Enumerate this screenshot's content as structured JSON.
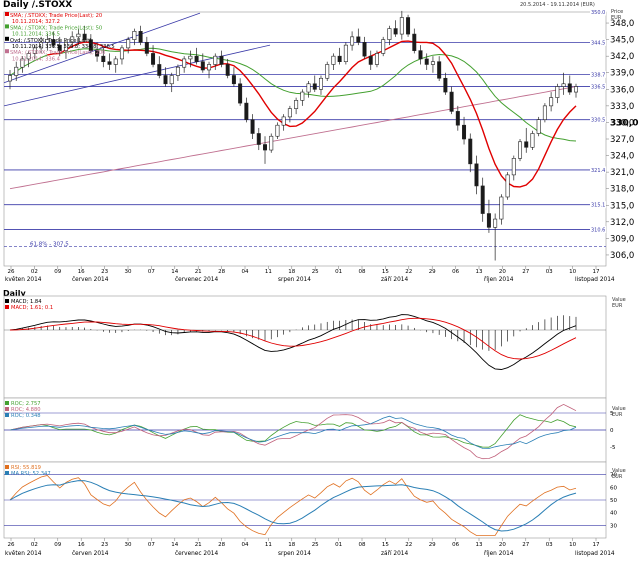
{
  "header": {
    "title": "Daily /.STOXX",
    "date_range": "20.5.2014 - 19.11.2014 (EUR)",
    "price_label": "Price",
    "currency_label": "EUR",
    "value_label": "Value",
    "sub_title": "Daily"
  },
  "chart_data": [
    {
      "type": "line",
      "panel": "price",
      "title": "Daily /.STOXX",
      "legend": [
        {
          "text": "SMA; /.STOXX; Trade Price(Last); 20",
          "color": "#e00000"
        },
        {
          "text": "10.11.2014; 327.2",
          "color": "#e00000"
        },
        {
          "text": "SMA; /.STOXX; Trade Price(Last); 50",
          "color": "#44a030"
        },
        {
          "text": "10.11.2014; 336.5",
          "color": "#44a030"
        },
        {
          "text": "Ovd; /.STOXX; Trade Price(Last)",
          "color": "#000000"
        },
        {
          "text": "10.11.2014; 336.5; 336.8; 334.8; 336.5",
          "color": "#000000"
        },
        {
          "text": "SMA; /.STOXX; Trade Price(Last); 200",
          "color": "#c07090"
        },
        {
          "text": "10.11.2014; 336.4",
          "color": "#c07090"
        }
      ],
      "ylim": [
        304,
        350
      ],
      "y_ticks": [
        "306,0",
        "309,0",
        "312,0",
        "315,0",
        "318,0",
        "321,0",
        "324,0",
        "327,0",
        "330,0",
        "333,0",
        "336,0",
        "339,0",
        "342,0",
        "345,0",
        "348,0"
      ],
      "level_labels": [
        {
          "value": 350.0,
          "text": "350.0"
        },
        {
          "value": 344.5,
          "text": "344.5"
        },
        {
          "value": 338.7,
          "text": "338.7"
        },
        {
          "value": 336.5,
          "text": "336.5"
        },
        {
          "value": 330.5,
          "text": "330.5"
        },
        {
          "value": 321.4,
          "text": "321.4"
        },
        {
          "value": 315.1,
          "text": "315.1"
        },
        {
          "value": 310.6,
          "text": "310.6"
        }
      ],
      "current_price": "330,0",
      "h_lines": [
        344.5,
        338.7,
        336.5,
        330.5,
        321.4,
        315.1,
        310.6
      ],
      "fib_line": {
        "value": 307.5,
        "text": "61,8% - 307,5"
      },
      "x_ticks": [
        "26",
        "02",
        "09",
        "16",
        "23",
        "30",
        "07",
        "14",
        "21",
        "28",
        "04",
        "11",
        "18",
        "25",
        "01",
        "08",
        "15",
        "22",
        "29",
        "06",
        "13",
        "20",
        "27",
        "03",
        "10",
        "17"
      ],
      "month_labels": [
        "květen 2014",
        "červen 2014",
        "červenec 2014",
        "srpen 2014",
        "září 2014",
        "říjen 2014",
        "listopad 2014"
      ],
      "candles": [
        [
          337.5,
          339.5,
          336,
          338.5
        ],
        [
          338.5,
          341,
          337.5,
          340
        ],
        [
          340,
          342,
          339,
          341.5
        ],
        [
          341.5,
          343,
          340,
          342.5
        ],
        [
          342.5,
          344,
          341.5,
          343.5
        ],
        [
          343.5,
          345.5,
          342.5,
          344.5
        ],
        [
          344.5,
          346,
          343,
          345
        ],
        [
          345,
          346.5,
          343.5,
          344
        ],
        [
          344,
          345.5,
          342,
          343
        ],
        [
          343,
          345,
          341.5,
          344.5
        ],
        [
          344.5,
          346.5,
          343.5,
          345.5
        ],
        [
          345.5,
          347,
          344,
          346
        ],
        [
          346,
          347.5,
          344.5,
          345
        ],
        [
          345,
          346,
          342.5,
          343
        ],
        [
          343,
          344.5,
          341,
          342
        ],
        [
          342,
          343.5,
          340,
          341
        ],
        [
          341,
          342.5,
          339.5,
          340.5
        ],
        [
          340.5,
          342,
          339,
          341.5
        ],
        [
          341.5,
          344,
          340.5,
          343.5
        ],
        [
          343.5,
          345.5,
          342.5,
          345
        ],
        [
          345,
          347,
          344,
          346.5
        ],
        [
          346.5,
          347.5,
          344,
          344.5
        ],
        [
          344.5,
          345.5,
          342,
          342.5
        ],
        [
          342.5,
          344,
          340,
          340.5
        ],
        [
          340.5,
          342,
          338,
          338.5
        ],
        [
          338.5,
          340,
          336.5,
          337
        ],
        [
          337,
          339,
          335.5,
          338.5
        ],
        [
          338.5,
          340.5,
          337.5,
          340
        ],
        [
          340,
          342,
          339,
          341.5
        ],
        [
          341.5,
          343,
          340,
          342
        ],
        [
          342,
          343.5,
          340.5,
          341
        ],
        [
          341,
          342.5,
          339,
          339.5
        ],
        [
          339.5,
          341,
          338,
          340.5
        ],
        [
          340.5,
          342.5,
          339.5,
          342
        ],
        [
          342,
          343,
          340,
          340.5
        ],
        [
          340.5,
          341.5,
          338,
          338.5
        ],
        [
          338.5,
          340,
          336.5,
          337
        ],
        [
          337,
          338,
          333,
          333.5
        ],
        [
          333.5,
          334.5,
          330,
          330.5
        ],
        [
          330.5,
          331.5,
          327,
          328
        ],
        [
          328,
          329,
          325,
          326
        ],
        [
          326,
          327.5,
          322.5,
          325
        ],
        [
          325,
          328,
          324.5,
          327.5
        ],
        [
          327.5,
          330,
          327,
          329.5
        ],
        [
          329.5,
          331.5,
          328.5,
          331
        ],
        [
          331,
          333,
          330,
          332.5
        ],
        [
          332.5,
          334.5,
          331.5,
          334
        ],
        [
          334,
          336,
          333,
          335.5
        ],
        [
          335.5,
          337.5,
          334.5,
          337
        ],
        [
          337,
          338.5,
          335.5,
          336
        ],
        [
          336,
          338.5,
          335,
          338
        ],
        [
          338,
          341,
          337.5,
          340.5
        ],
        [
          340.5,
          342.5,
          339.5,
          342
        ],
        [
          342,
          343.5,
          340.5,
          341
        ],
        [
          341,
          344.5,
          340.5,
          344
        ],
        [
          344,
          346.5,
          343,
          345.5
        ],
        [
          345.5,
          347,
          344,
          344.5
        ],
        [
          344.5,
          345.5,
          341.5,
          342
        ],
        [
          342,
          343,
          339.5,
          340.5
        ],
        [
          340.5,
          343,
          340,
          342.5
        ],
        [
          342.5,
          345.5,
          342,
          345
        ],
        [
          345,
          347.5,
          344,
          347
        ],
        [
          347,
          348.5,
          345.5,
          346
        ],
        [
          346,
          350.2,
          345,
          349
        ],
        [
          349,
          349.5,
          345.5,
          346
        ],
        [
          346,
          347,
          342.5,
          343
        ],
        [
          343,
          344,
          340.5,
          341.5
        ],
        [
          341.5,
          342.5,
          339.5,
          340.5
        ],
        [
          340.5,
          342,
          339,
          341
        ],
        [
          341,
          342,
          337.5,
          338
        ],
        [
          338,
          339,
          335,
          335.5
        ],
        [
          335.5,
          336.5,
          331.5,
          332
        ],
        [
          332,
          333,
          328.5,
          329.5
        ],
        [
          329.5,
          331,
          326,
          327
        ],
        [
          327,
          328,
          321,
          322.5
        ],
        [
          322.5,
          324,
          317,
          318.5
        ],
        [
          318.5,
          320,
          312,
          313.5
        ],
        [
          313.5,
          316,
          310,
          311
        ],
        [
          311,
          313.5,
          305,
          312.5
        ],
        [
          312.5,
          317,
          311.5,
          316.5
        ],
        [
          316.5,
          321,
          316,
          320.5
        ],
        [
          320.5,
          324,
          319.5,
          323.5
        ],
        [
          323.5,
          327,
          323,
          326.5
        ],
        [
          326.5,
          329,
          324.5,
          325.5
        ],
        [
          325.5,
          328.5,
          325,
          328
        ],
        [
          328,
          331,
          327.5,
          330.5
        ],
        [
          330.5,
          333.5,
          330,
          333
        ],
        [
          333,
          335.5,
          332,
          334.5
        ],
        [
          334.5,
          337,
          333.5,
          336.5
        ],
        [
          336.5,
          339,
          335,
          337
        ],
        [
          337,
          338.5,
          335,
          335.5
        ],
        [
          335.5,
          337,
          334.5,
          336.5
        ]
      ]
    },
    {
      "type": "line",
      "panel": "macd",
      "legend": [
        {
          "text": "MACD; 1.84",
          "color": "#000000"
        },
        {
          "text": "MACD; 1.61; 0.1",
          "color": "#e00000"
        }
      ],
      "value_label": "Value",
      "currency_label": "EUR",
      "ylim": [
        -12,
        6
      ]
    },
    {
      "type": "line",
      "panel": "roc",
      "legend": [
        {
          "text": "ROC; 2.757",
          "color": "#44a030"
        },
        {
          "text": "ROC; 4.880",
          "color": "#c0607a"
        },
        {
          "text": "ROC; 0.348",
          "color": "#2a7fb5"
        }
      ],
      "value_label": "Value",
      "currency_label": "EUR",
      "y_ticks": [
        "5",
        "0",
        "-5"
      ]
    },
    {
      "type": "line",
      "panel": "rsi",
      "legend": [
        {
          "text": "RSI; 55.819",
          "color": "#e07020"
        },
        {
          "text": "MA RSI; 52.347",
          "color": "#2a7fb5"
        }
      ],
      "value_label": "Value",
      "currency_label": "EUR",
      "y_ticks": [
        "70",
        "60",
        "50",
        "40",
        "30"
      ],
      "h_lines": [
        70,
        50,
        30
      ],
      "x_ticks": [
        "26",
        "02",
        "09",
        "16",
        "23",
        "30",
        "07",
        "14",
        "21",
        "28",
        "04",
        "11",
        "18",
        "25",
        "01",
        "08",
        "15",
        "22",
        "29",
        "06",
        "13",
        "20",
        "27",
        "03",
        "10",
        "17"
      ],
      "month_labels": [
        "květen 2014",
        "červen 2014",
        "červenec 2014",
        "srpen 2014",
        "září 2014",
        "říjen 2014",
        "listopad 2014"
      ]
    }
  ],
  "colors": {
    "sma20": "#e00000",
    "sma50": "#44a030",
    "sma200": "#c07090",
    "trend": "#3a3aa8",
    "level": "#3a3aa8",
    "candle_up": "#ffffff",
    "candle_down": "#1a1a1a"
  }
}
